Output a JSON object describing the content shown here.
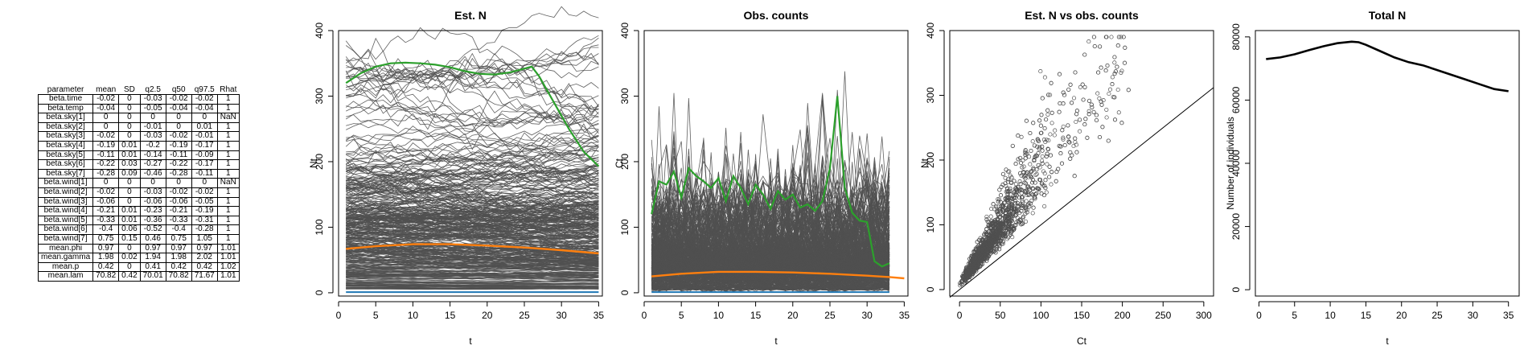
{
  "table": {
    "headers": [
      "parameter",
      "mean",
      "SD",
      "q2.5",
      "q50",
      "q97.5",
      "Rhat"
    ],
    "rows": [
      [
        "beta.time",
        "-0.02",
        "0",
        "-0.03",
        "-0.02",
        "-0.02",
        "1"
      ],
      [
        "beta.temp",
        "-0.04",
        "0",
        "-0.05",
        "-0.04",
        "-0.04",
        "1"
      ],
      [
        "beta.sky[1]",
        "0",
        "0",
        "0",
        "0",
        "0",
        "NaN"
      ],
      [
        "beta.sky[2]",
        "0",
        "0",
        "-0.01",
        "0",
        "0.01",
        "1"
      ],
      [
        "beta.sky[3]",
        "-0.02",
        "0",
        "-0.03",
        "-0.02",
        "-0.01",
        "1"
      ],
      [
        "beta.sky[4]",
        "-0.19",
        "0.01",
        "-0.2",
        "-0.19",
        "-0.17",
        "1"
      ],
      [
        "beta.sky[5]",
        "-0.11",
        "0.01",
        "-0.14",
        "-0.11",
        "-0.09",
        "1"
      ],
      [
        "beta.sky[6]",
        "-0.22",
        "0.03",
        "-0.27",
        "-0.22",
        "-0.17",
        "1"
      ],
      [
        "beta.sky[7]",
        "-0.28",
        "0.09",
        "-0.46",
        "-0.28",
        "-0.11",
        "1"
      ],
      [
        "beta.wind[1]",
        "0",
        "0",
        "0",
        "0",
        "0",
        "NaN"
      ],
      [
        "beta.wind[2]",
        "-0.02",
        "0",
        "-0.03",
        "-0.02",
        "-0.02",
        "1"
      ],
      [
        "beta.wind[3]",
        "-0.06",
        "0",
        "-0.06",
        "-0.06",
        "-0.05",
        "1"
      ],
      [
        "beta.wind[4]",
        "-0.21",
        "0.01",
        "-0.23",
        "-0.21",
        "-0.19",
        "1"
      ],
      [
        "beta.wind[5]",
        "-0.33",
        "0.01",
        "-0.36",
        "-0.33",
        "-0.31",
        "1"
      ],
      [
        "beta.wind[6]",
        "-0.4",
        "0.06",
        "-0.52",
        "-0.4",
        "-0.28",
        "1"
      ],
      [
        "beta.wind[7]",
        "0.75",
        "0.15",
        "0.46",
        "0.75",
        "1.05",
        "1"
      ],
      [
        "mean.phi",
        "0.97",
        "0",
        "0.97",
        "0.97",
        "0.97",
        "1.01"
      ],
      [
        "mean.gamma",
        "1.98",
        "0.02",
        "1.94",
        "1.98",
        "2.02",
        "1.01"
      ],
      [
        "mean.p",
        "0.42",
        "0",
        "0.41",
        "0.42",
        "0.42",
        "1.02"
      ],
      [
        "mean.lam",
        "70.82",
        "0.42",
        "70.01",
        "70.82",
        "71.67",
        "1.01"
      ]
    ]
  },
  "chart_data": [
    {
      "type": "line",
      "title": "Est. N",
      "xlabel": "t",
      "ylabel": "Nt",
      "xlim": [
        0,
        35.5
      ],
      "ylim": [
        -5,
        400
      ],
      "xticks": [
        0,
        5,
        10,
        15,
        20,
        25,
        30,
        35
      ],
      "yticks": [
        0,
        100,
        200,
        300,
        400
      ],
      "colors": {
        "sites": "#555555",
        "highlight": "#2ca02c",
        "mean": "#ff7f0e",
        "low": "#1f77b4"
      },
      "series": [
        {
          "values_note": "",
          "x": [
            1,
            3,
            5,
            7,
            9,
            11,
            13,
            15,
            17,
            19,
            21,
            23,
            25,
            26,
            27,
            29,
            31,
            33,
            35
          ],
          "y": [
            320,
            335,
            345,
            350,
            351,
            350,
            348,
            344,
            338,
            334,
            333,
            336,
            342,
            345,
            330,
            290,
            250,
            215,
            193
          ]
        },
        {
          "x": [
            1,
            5,
            10,
            15,
            20,
            25,
            30,
            35
          ],
          "y": [
            67,
            71,
            74,
            74,
            72,
            69,
            65,
            60
          ]
        },
        {
          "x": [
            1,
            35
          ],
          "y": [
            1,
            1
          ]
        }
      ]
    },
    {
      "type": "line",
      "title": "Obs. counts",
      "xlabel": "t",
      "ylabel": "Ct",
      "xlim": [
        0,
        35.5
      ],
      "ylim": [
        -5,
        400
      ],
      "xticks": [
        0,
        5,
        10,
        15,
        20,
        25,
        30,
        35
      ],
      "yticks": [
        0,
        100,
        200,
        300,
        400
      ],
      "series": [
        {
          "x": [
            1,
            2,
            3,
            4,
            5,
            6,
            7,
            8,
            9,
            10,
            11,
            12,
            13,
            14,
            15,
            16,
            17,
            18,
            19,
            20,
            21,
            22,
            23,
            24,
            25,
            26,
            27,
            28,
            29,
            30,
            31,
            32,
            33
          ],
          "y": [
            120,
            170,
            165,
            185,
            145,
            190,
            178,
            170,
            160,
            175,
            140,
            178,
            160,
            135,
            165,
            150,
            128,
            155,
            142,
            150,
            130,
            135,
            125,
            140,
            190,
            300,
            160,
            122,
            110,
            108,
            48,
            40,
            45
          ]
        },
        {
          "x": [
            1,
            5,
            10,
            15,
            20,
            25,
            30,
            33,
            35
          ],
          "y": [
            25,
            29,
            32,
            32,
            31,
            29,
            26,
            24,
            22
          ]
        },
        {
          "x": [
            1,
            33
          ],
          "y": [
            1,
            1
          ]
        }
      ]
    },
    {
      "type": "scatter",
      "title": "Est. N vs obs. counts",
      "xlabel": "Ct",
      "ylabel": "Nt",
      "xlim": [
        -12,
        312
      ],
      "ylim": [
        -10,
        400
      ],
      "xticks": [
        0,
        50,
        100,
        150,
        200,
        250,
        300
      ],
      "yticks": [
        0,
        100,
        200,
        300,
        400
      ],
      "reference_line": "y = x"
    },
    {
      "type": "line",
      "title": "Total N",
      "xlabel": "t",
      "ylabel": "Number of individuals",
      "xlim": [
        -0.5,
        36.5
      ],
      "ylim": [
        -2000,
        82000
      ],
      "xticks": [
        0,
        5,
        10,
        15,
        20,
        25,
        30,
        35
      ],
      "yticks": [
        0,
        20000,
        40000,
        60000,
        80000
      ],
      "series": [
        {
          "x": [
            1,
            3,
            5,
            7,
            9,
            11,
            13,
            14,
            15,
            17,
            19,
            21,
            23,
            25,
            27,
            29,
            31,
            33,
            35
          ],
          "y": [
            73000,
            73500,
            74500,
            75800,
            77000,
            78000,
            78500,
            78300,
            77500,
            75500,
            73500,
            72000,
            71000,
            69500,
            68000,
            66500,
            65000,
            63500,
            62800
          ]
        }
      ]
    }
  ]
}
